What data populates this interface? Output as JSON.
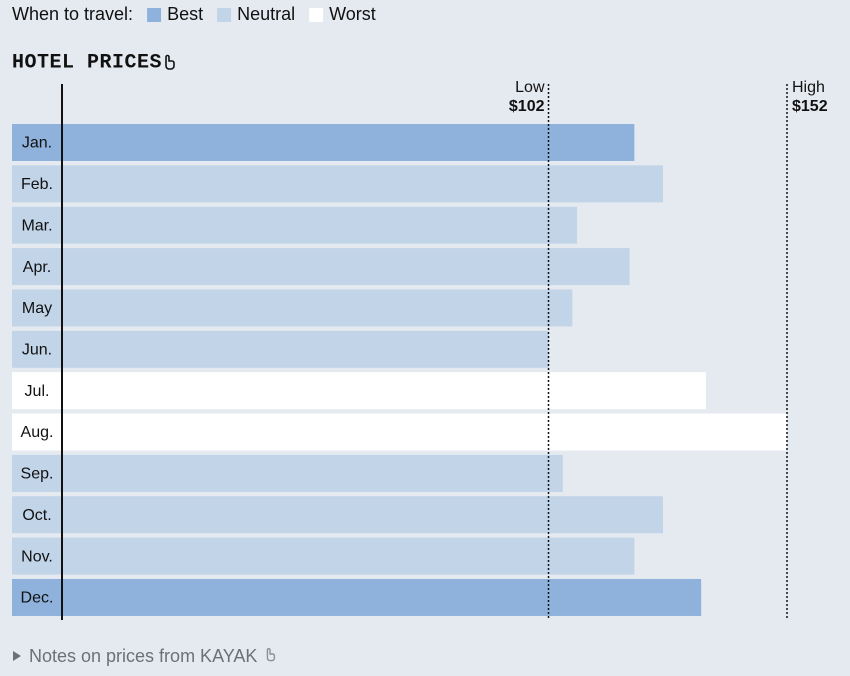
{
  "legend_title": "When to travel:",
  "chart_data": {
    "type": "bar",
    "orientation": "horizontal",
    "title": "HOTEL PRICES",
    "legend": [
      {
        "name": "Best",
        "color": "#8fb2dc"
      },
      {
        "name": "Neutral",
        "color": "#c2d4e8"
      },
      {
        "name": "Worst",
        "color": "#ffffff"
      }
    ],
    "categories": [
      "Jan.",
      "Feb.",
      "Mar.",
      "Apr.",
      "May",
      "Jun.",
      "Jul.",
      "Aug.",
      "Sep.",
      "Oct.",
      "Nov.",
      "Dec."
    ],
    "values": [
      120,
      126,
      108,
      119,
      107,
      102,
      135,
      152,
      105,
      126,
      120,
      134
    ],
    "colors": [
      "#8fb2dc",
      "#c2d4e8",
      "#c2d4e8",
      "#c2d4e8",
      "#c2d4e8",
      "#c2d4e8",
      "#ffffff",
      "#ffffff",
      "#c2d4e8",
      "#c2d4e8",
      "#c2d4e8",
      "#8fb2dc"
    ],
    "xlim": [
      0,
      152
    ],
    "reference_lines": [
      {
        "label": "Low",
        "value": 102,
        "value_label": "$102"
      },
      {
        "label": "High",
        "value": 152,
        "value_label": "$152"
      }
    ]
  },
  "footer": "Notes on prices from KAYAK"
}
